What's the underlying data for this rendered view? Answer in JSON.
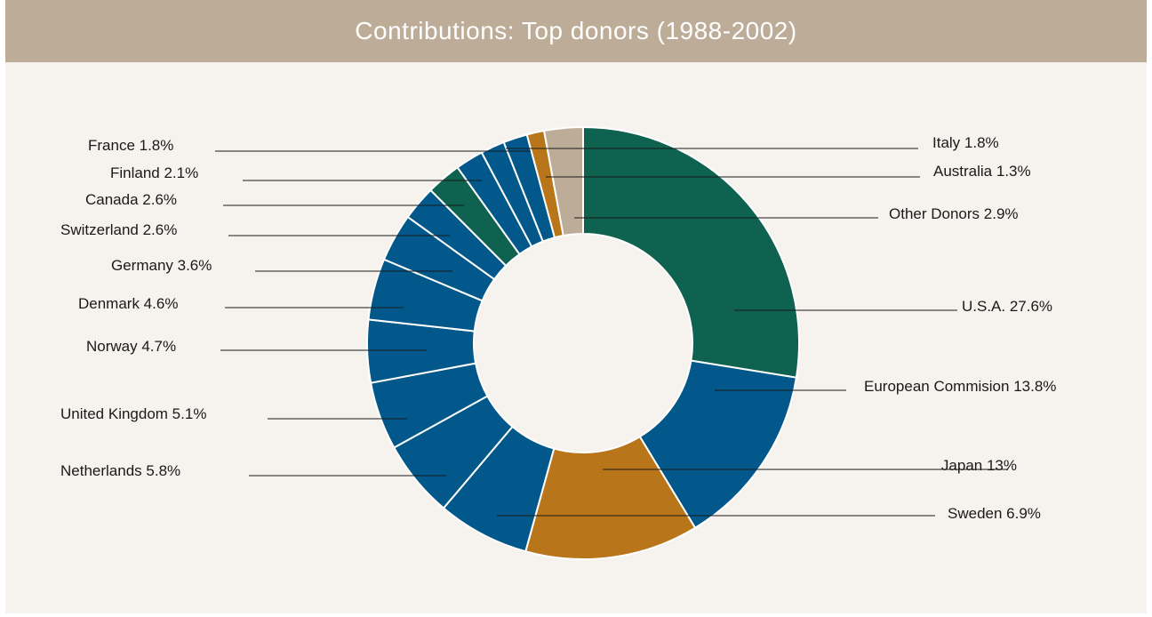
{
  "chart_data": {
    "type": "pie",
    "title": "Contributions: Top donors (1988-2002)",
    "slices": [
      {
        "name": "U.S.A.",
        "label": "U.S.A.  27.6%",
        "value": 27.6,
        "color": "#0f6150"
      },
      {
        "name": "European Commision",
        "label": "European Commision  13.8%",
        "value": 13.8,
        "color": "#02588a"
      },
      {
        "name": "Japan",
        "label": "Japan  13%",
        "value": 13,
        "color": "#b87519"
      },
      {
        "name": "Sweden",
        "label": "Sweden  6.9%",
        "value": 6.9,
        "color": "#02588a"
      },
      {
        "name": "Netherlands",
        "label": "Netherlands  5.8%",
        "value": 5.8,
        "color": "#02588a"
      },
      {
        "name": "United Kingdom",
        "label": "United Kingdom  5.1%",
        "value": 5.1,
        "color": "#02588a"
      },
      {
        "name": "Norway",
        "label": "Norway  4.7%",
        "value": 4.7,
        "color": "#02588a"
      },
      {
        "name": "Denmark",
        "label": "Denmark  4.6%",
        "value": 4.6,
        "color": "#02588a"
      },
      {
        "name": "Germany",
        "label": "Germany  3.6%",
        "value": 3.6,
        "color": "#02588a"
      },
      {
        "name": "Switzerland",
        "label": "Switzerland  2.6%",
        "value": 2.6,
        "color": "#02588a"
      },
      {
        "name": "Canada",
        "label": "Canada  2.6%",
        "value": 2.6,
        "color": "#0f6150"
      },
      {
        "name": "Finland",
        "label": "Finland  2.1%",
        "value": 2.1,
        "color": "#02588a"
      },
      {
        "name": "France",
        "label": "France  1.8%",
        "value": 1.8,
        "color": "#02588a"
      },
      {
        "name": "Italy",
        "label": "Italy  1.8%",
        "value": 1.8,
        "color": "#02588a"
      },
      {
        "name": "Australia",
        "label": "Australia  1.3%",
        "value": 1.3,
        "color": "#b87519"
      },
      {
        "name": "Other Donors",
        "label": "Other Donors  2.9%",
        "value": 2.9,
        "color": "#bdac98"
      }
    ],
    "donut": true,
    "legend": "none"
  }
}
